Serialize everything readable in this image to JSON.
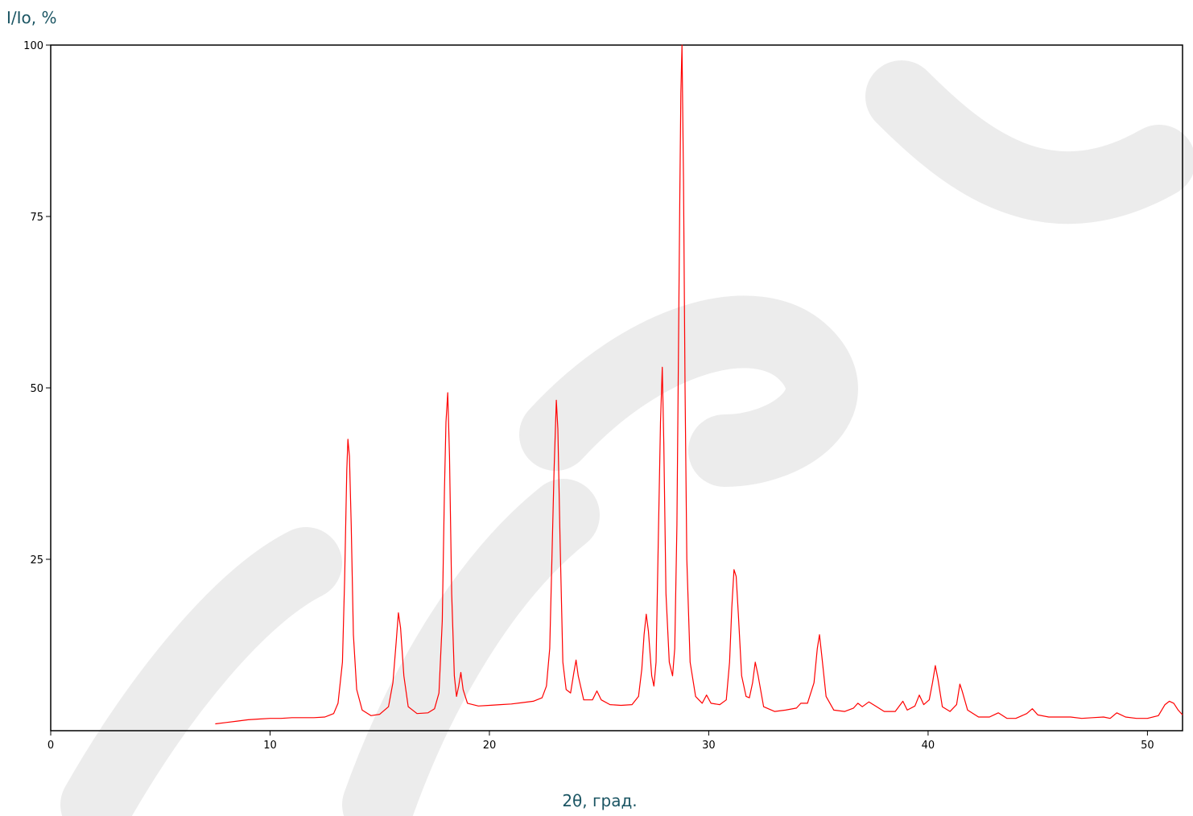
{
  "chart_data": {
    "type": "line",
    "title": "",
    "xlabel": "2θ, град.",
    "ylabel": "I/Io, %",
    "xlim": [
      0,
      51.6
    ],
    "ylim": [
      0,
      100
    ],
    "x_ticks": [
      0,
      10,
      20,
      30,
      40,
      50
    ],
    "y_ticks": [
      25,
      50,
      75,
      100
    ],
    "grid": false,
    "colors": {
      "series": "#ff0000",
      "axes": "#000000",
      "labels": "#1b5563",
      "watermark": "#e6e6e6"
    },
    "watermark": "Образец",
    "series": [
      {
        "points": [
          [
            7.5,
            1.0
          ],
          [
            8.0,
            1.2
          ],
          [
            8.5,
            1.4
          ],
          [
            9.0,
            1.6
          ],
          [
            9.5,
            1.7
          ],
          [
            10.0,
            1.8
          ],
          [
            10.5,
            1.8
          ],
          [
            11.0,
            1.9
          ],
          [
            11.5,
            1.9
          ],
          [
            12.0,
            1.9
          ],
          [
            12.5,
            2.0
          ],
          [
            12.9,
            2.5
          ],
          [
            13.1,
            4.0
          ],
          [
            13.3,
            10.0
          ],
          [
            13.4,
            22.0
          ],
          [
            13.5,
            38.0
          ],
          [
            13.55,
            42.5
          ],
          [
            13.62,
            40.0
          ],
          [
            13.7,
            30.0
          ],
          [
            13.8,
            14.0
          ],
          [
            13.95,
            6.0
          ],
          [
            14.2,
            3.0
          ],
          [
            14.6,
            2.2
          ],
          [
            15.0,
            2.4
          ],
          [
            15.4,
            3.5
          ],
          [
            15.6,
            7.0
          ],
          [
            15.75,
            13.0
          ],
          [
            15.85,
            17.2
          ],
          [
            15.95,
            15.0
          ],
          [
            16.1,
            8.0
          ],
          [
            16.3,
            3.5
          ],
          [
            16.7,
            2.5
          ],
          [
            17.2,
            2.6
          ],
          [
            17.5,
            3.2
          ],
          [
            17.7,
            5.5
          ],
          [
            17.85,
            16.0
          ],
          [
            17.95,
            35.0
          ],
          [
            18.02,
            45.0
          ],
          [
            18.1,
            49.3
          ],
          [
            18.18,
            40.0
          ],
          [
            18.28,
            20.0
          ],
          [
            18.4,
            8.0
          ],
          [
            18.5,
            5.0
          ],
          [
            18.6,
            6.5
          ],
          [
            18.7,
            8.5
          ],
          [
            18.8,
            6.0
          ],
          [
            19.0,
            4.0
          ],
          [
            19.5,
            3.6
          ],
          [
            20.0,
            3.7
          ],
          [
            20.5,
            3.8
          ],
          [
            21.0,
            3.9
          ],
          [
            21.5,
            4.1
          ],
          [
            22.0,
            4.3
          ],
          [
            22.4,
            4.8
          ],
          [
            22.6,
            6.5
          ],
          [
            22.75,
            12.0
          ],
          [
            22.85,
            25.0
          ],
          [
            22.95,
            38.0
          ],
          [
            23.05,
            48.2
          ],
          [
            23.12,
            44.0
          ],
          [
            23.22,
            28.0
          ],
          [
            23.35,
            10.0
          ],
          [
            23.5,
            6.0
          ],
          [
            23.7,
            5.5
          ],
          [
            23.85,
            8.5
          ],
          [
            23.95,
            10.3
          ],
          [
            24.05,
            8.0
          ],
          [
            24.3,
            4.5
          ],
          [
            24.7,
            4.5
          ],
          [
            24.9,
            5.8
          ],
          [
            25.1,
            4.5
          ],
          [
            25.5,
            3.8
          ],
          [
            26.0,
            3.7
          ],
          [
            26.5,
            3.8
          ],
          [
            26.8,
            5.0
          ],
          [
            26.95,
            9.0
          ],
          [
            27.05,
            14.0
          ],
          [
            27.15,
            17.0
          ],
          [
            27.25,
            14.5
          ],
          [
            27.4,
            8.0
          ],
          [
            27.5,
            6.5
          ],
          [
            27.6,
            10.0
          ],
          [
            27.7,
            28.0
          ],
          [
            27.8,
            45.0
          ],
          [
            27.88,
            53.0
          ],
          [
            27.95,
            42.0
          ],
          [
            28.05,
            20.0
          ],
          [
            28.2,
            10.0
          ],
          [
            28.35,
            8.0
          ],
          [
            28.45,
            12.0
          ],
          [
            28.55,
            30.0
          ],
          [
            28.62,
            55.0
          ],
          [
            28.68,
            78.0
          ],
          [
            28.73,
            93.0
          ],
          [
            28.78,
            100.0
          ],
          [
            28.85,
            80.0
          ],
          [
            28.92,
            50.0
          ],
          [
            29.0,
            25.0
          ],
          [
            29.15,
            10.0
          ],
          [
            29.4,
            5.0
          ],
          [
            29.7,
            4.0
          ],
          [
            29.9,
            5.2
          ],
          [
            30.1,
            4.0
          ],
          [
            30.5,
            3.8
          ],
          [
            30.8,
            4.5
          ],
          [
            30.95,
            10.0
          ],
          [
            31.05,
            18.0
          ],
          [
            31.15,
            23.5
          ],
          [
            31.25,
            22.5
          ],
          [
            31.35,
            17.0
          ],
          [
            31.5,
            8.0
          ],
          [
            31.7,
            5.0
          ],
          [
            31.85,
            4.8
          ],
          [
            32.0,
            7.0
          ],
          [
            32.12,
            10.0
          ],
          [
            32.25,
            8.0
          ],
          [
            32.5,
            3.5
          ],
          [
            33.0,
            2.8
          ],
          [
            33.5,
            3.0
          ],
          [
            34.0,
            3.3
          ],
          [
            34.2,
            4.0
          ],
          [
            34.5,
            4.0
          ],
          [
            34.8,
            7.0
          ],
          [
            34.95,
            12.0
          ],
          [
            35.05,
            14.0
          ],
          [
            35.15,
            11.0
          ],
          [
            35.35,
            5.0
          ],
          [
            35.7,
            3.0
          ],
          [
            36.2,
            2.8
          ],
          [
            36.6,
            3.3
          ],
          [
            36.8,
            4.0
          ],
          [
            37.0,
            3.5
          ],
          [
            37.3,
            4.2
          ],
          [
            37.6,
            3.6
          ],
          [
            38.0,
            2.8
          ],
          [
            38.5,
            2.8
          ],
          [
            38.85,
            4.3
          ],
          [
            39.05,
            3.0
          ],
          [
            39.4,
            3.6
          ],
          [
            39.6,
            5.2
          ],
          [
            39.8,
            3.8
          ],
          [
            40.05,
            4.5
          ],
          [
            40.2,
            7.0
          ],
          [
            40.33,
            9.5
          ],
          [
            40.45,
            7.5
          ],
          [
            40.65,
            3.5
          ],
          [
            41.0,
            2.8
          ],
          [
            41.3,
            3.8
          ],
          [
            41.45,
            6.8
          ],
          [
            41.55,
            5.8
          ],
          [
            41.8,
            3.0
          ],
          [
            42.3,
            2.0
          ],
          [
            42.8,
            2.0
          ],
          [
            43.2,
            2.6
          ],
          [
            43.6,
            1.8
          ],
          [
            44.0,
            1.8
          ],
          [
            44.5,
            2.5
          ],
          [
            44.75,
            3.2
          ],
          [
            45.0,
            2.3
          ],
          [
            45.5,
            2.0
          ],
          [
            46.0,
            2.0
          ],
          [
            46.5,
            2.0
          ],
          [
            47.0,
            1.8
          ],
          [
            47.5,
            1.9
          ],
          [
            48.0,
            2.0
          ],
          [
            48.3,
            1.8
          ],
          [
            48.6,
            2.6
          ],
          [
            49.0,
            2.0
          ],
          [
            49.5,
            1.8
          ],
          [
            50.0,
            1.8
          ],
          [
            50.5,
            2.2
          ],
          [
            50.8,
            3.8
          ],
          [
            51.0,
            4.3
          ],
          [
            51.2,
            4.0
          ],
          [
            51.4,
            3.0
          ],
          [
            51.6,
            2.3
          ]
        ]
      }
    ]
  }
}
